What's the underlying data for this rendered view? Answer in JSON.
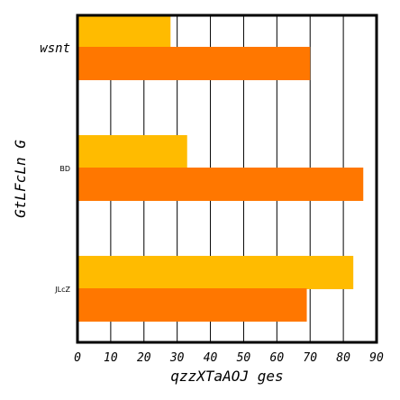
{
  "chart_data": {
    "type": "bar",
    "orientation": "horizontal",
    "categories": [
      "wsnt",
      "BD",
      "JLcZ"
    ],
    "series": [
      {
        "color": "#ffbb00",
        "values": [
          28,
          33,
          83
        ]
      },
      {
        "color": "#ff7700",
        "values": [
          70,
          86,
          69
        ]
      }
    ],
    "xlabel": "qzzXTaAOJ ges",
    "ylabel": "GtLFcLn G",
    "xlim": [
      0,
      90
    ],
    "xticks": [
      0,
      10,
      20,
      30,
      40,
      50,
      60,
      70,
      80,
      90
    ],
    "grid": true
  }
}
